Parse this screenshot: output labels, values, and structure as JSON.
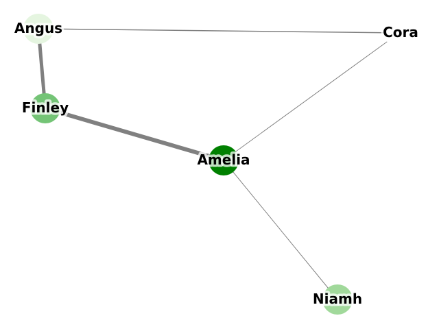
{
  "graph": {
    "nodes": [
      {
        "id": "Angus",
        "label": "Angus",
        "color": "#e5f5e0"
      },
      {
        "id": "Cora",
        "label": "Cora",
        "color": "#ffffff"
      },
      {
        "id": "Finley",
        "label": "Finley",
        "color": "#74c476"
      },
      {
        "id": "Amelia",
        "label": "Amelia",
        "color": "#008000"
      },
      {
        "id": "Niamh",
        "label": "Niamh",
        "color": "#a1d99b"
      }
    ],
    "edges": [
      {
        "source": "Angus",
        "target": "Cora",
        "weight": 1.5
      },
      {
        "source": "Angus",
        "target": "Finley",
        "weight": 5
      },
      {
        "source": "Finley",
        "target": "Amelia",
        "weight": 6
      },
      {
        "source": "Cora",
        "target": "Amelia",
        "weight": 1
      },
      {
        "source": "Amelia",
        "target": "Niamh",
        "weight": 1
      }
    ],
    "edge_color": "#808080"
  }
}
